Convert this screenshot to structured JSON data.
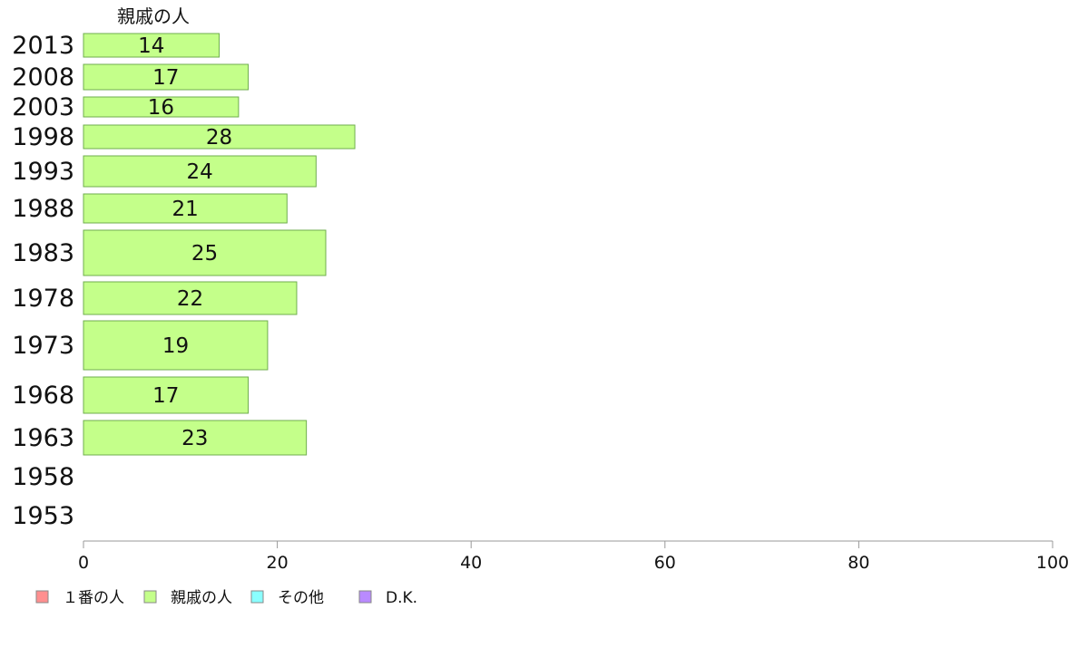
{
  "chart_data": {
    "type": "bar",
    "orientation": "horizontal",
    "stacked": true,
    "series_title": "親戚の人",
    "categories": [
      "2013",
      "2008",
      "2003",
      "1998",
      "1993",
      "1988",
      "1983",
      "1978",
      "1973",
      "1968",
      "1963",
      "1958",
      "1953"
    ],
    "series": [
      {
        "name": "１番の人",
        "color": "#ff8f8f",
        "values": [
          null,
          null,
          null,
          null,
          null,
          null,
          null,
          null,
          null,
          null,
          null,
          null,
          null
        ]
      },
      {
        "name": "親戚の人",
        "color": "#c4ff8a",
        "values": [
          14,
          17,
          16,
          28,
          24,
          21,
          25,
          22,
          19,
          17,
          23,
          null,
          null
        ]
      },
      {
        "name": "その他",
        "color": "#8affff",
        "values": [
          null,
          null,
          null,
          null,
          null,
          null,
          null,
          null,
          null,
          null,
          null,
          null,
          null
        ]
      },
      {
        "name": "D.K.",
        "color": "#b98aff",
        "values": [
          null,
          null,
          null,
          null,
          null,
          null,
          null,
          null,
          null,
          null,
          null,
          null,
          null
        ]
      }
    ],
    "xlim": [
      0,
      100
    ],
    "xticks": [
      "0",
      "20",
      "40",
      "60",
      "80",
      "100"
    ],
    "legend_position": "bottom-left",
    "grid": false
  }
}
